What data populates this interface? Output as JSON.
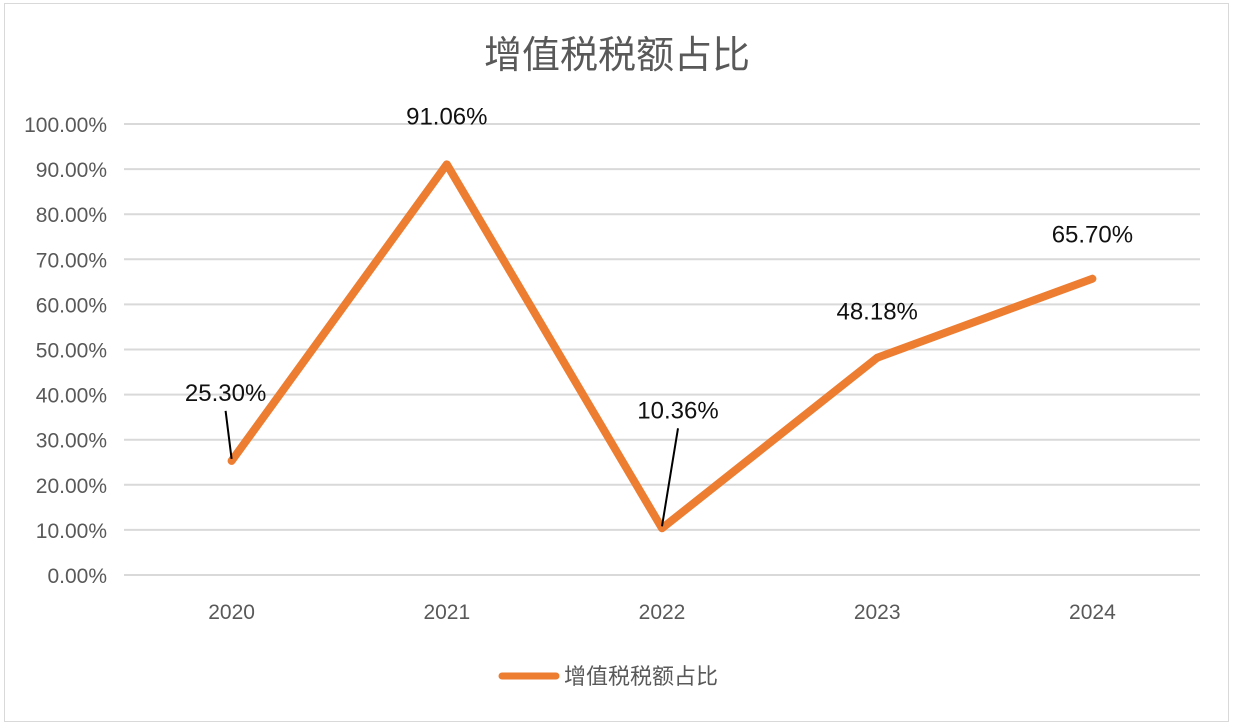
{
  "chart_data": {
    "type": "line",
    "title": "增值税税额占比",
    "categories": [
      "2020",
      "2021",
      "2022",
      "2023",
      "2024"
    ],
    "series": [
      {
        "name": "增值税税额占比",
        "values": [
          25.3,
          91.06,
          10.36,
          48.18,
          65.7
        ],
        "labels": [
          "25.30%",
          "91.06%",
          "10.36%",
          "48.18%",
          "65.70%"
        ],
        "color": "#ED7D31"
      }
    ],
    "y_ticks": [
      "0.00%",
      "10.00%",
      "20.00%",
      "30.00%",
      "40.00%",
      "50.00%",
      "60.00%",
      "70.00%",
      "80.00%",
      "90.00%",
      "100.00%"
    ],
    "ylim": [
      0,
      100
    ],
    "grid": true,
    "legend_position": "bottom",
    "xlabel": "",
    "ylabel": ""
  }
}
